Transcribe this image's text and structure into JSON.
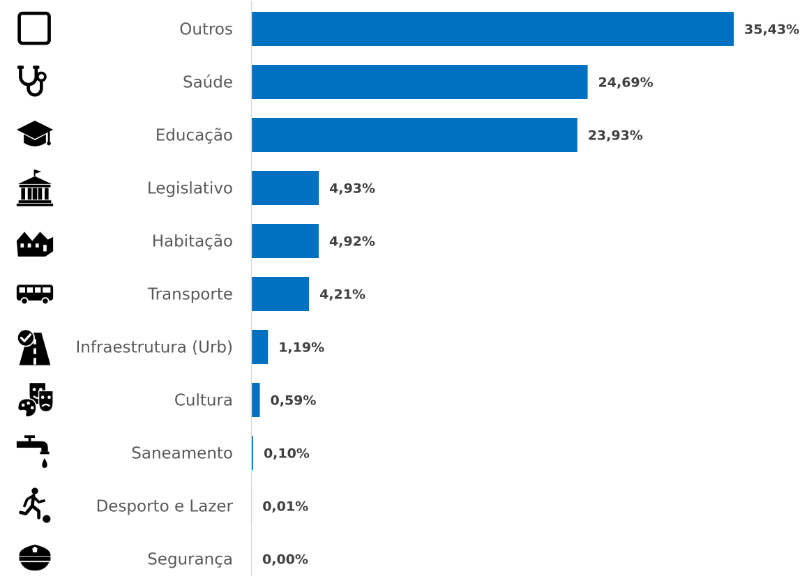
{
  "chart_data": {
    "type": "bar",
    "orientation": "horizontal",
    "categories": [
      "Outros",
      "Saúde",
      "Educação",
      "Legislativo",
      "Habitação",
      "Transporte",
      "Infraestrutura (Urb)",
      "Cultura",
      "Saneamento",
      "Desporto e Lazer",
      "Segurança"
    ],
    "values": [
      35.43,
      24.69,
      23.93,
      4.93,
      4.92,
      4.21,
      1.19,
      0.59,
      0.1,
      0.01,
      0.0
    ],
    "value_labels": [
      "35,43%",
      "24,69%",
      "23,93%",
      "4,93%",
      "4,92%",
      "4,21%",
      "1,19%",
      "0,59%",
      "0,10%",
      "0,01%",
      "0,00%"
    ],
    "icons": [
      "square-outline-icon",
      "stethoscope-icon",
      "graduation-cap-icon",
      "government-building-icon",
      "houses-icon",
      "bus-icon",
      "road-check-icon",
      "theater-masks-palette-icon",
      "water-tap-icon",
      "soccer-player-icon",
      "police-cap-icon"
    ],
    "title": "",
    "xlabel": "",
    "ylabel": "",
    "xlim": [
      0,
      35.43
    ],
    "grid": false,
    "legend": "none",
    "bar_color": "#0070C0",
    "axis_color": "#D9D9D9"
  }
}
